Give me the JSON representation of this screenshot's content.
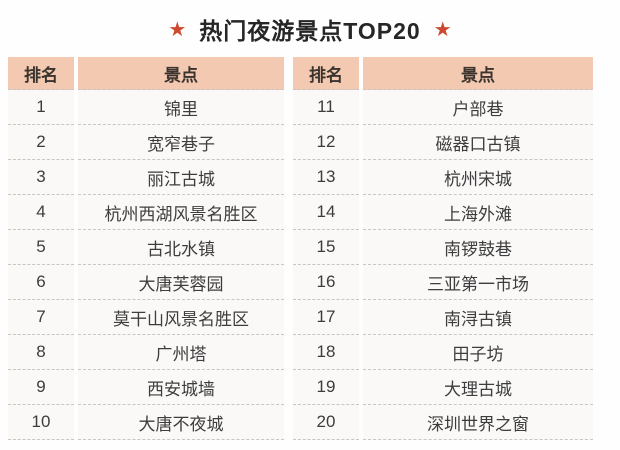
{
  "title": {
    "text": "热门夜游景点TOP20",
    "star_icon": "★"
  },
  "colors": {
    "header_bg": "#f3c9b1",
    "star": "#cb4a2f",
    "title_text": "#262626",
    "body_text": "#3d3d3d",
    "dashed_line": "#c9c5c1"
  },
  "chart_data": {
    "type": "table",
    "title": "热门夜游景点TOP20",
    "columns": {
      "rank": "排名",
      "spot": "景点"
    },
    "left_rows": [
      {
        "rank": "1",
        "spot": "锦里"
      },
      {
        "rank": "2",
        "spot": "宽窄巷子"
      },
      {
        "rank": "3",
        "spot": "丽江古城"
      },
      {
        "rank": "4",
        "spot": "杭州西湖风景名胜区"
      },
      {
        "rank": "5",
        "spot": "古北水镇"
      },
      {
        "rank": "6",
        "spot": "大唐芙蓉园"
      },
      {
        "rank": "7",
        "spot": "莫干山风景名胜区"
      },
      {
        "rank": "8",
        "spot": "广州塔"
      },
      {
        "rank": "9",
        "spot": "西安城墙"
      },
      {
        "rank": "10",
        "spot": "大唐不夜城"
      }
    ],
    "right_rows": [
      {
        "rank": "11",
        "spot": "户部巷"
      },
      {
        "rank": "12",
        "spot": "磁器口古镇"
      },
      {
        "rank": "13",
        "spot": "杭州宋城"
      },
      {
        "rank": "14",
        "spot": "上海外滩"
      },
      {
        "rank": "15",
        "spot": "南锣鼓巷"
      },
      {
        "rank": "16",
        "spot": "三亚第一市场"
      },
      {
        "rank": "17",
        "spot": "南浔古镇"
      },
      {
        "rank": "18",
        "spot": "田子坊"
      },
      {
        "rank": "19",
        "spot": "大理古城"
      },
      {
        "rank": "20",
        "spot": "深圳世界之窗"
      }
    ]
  }
}
